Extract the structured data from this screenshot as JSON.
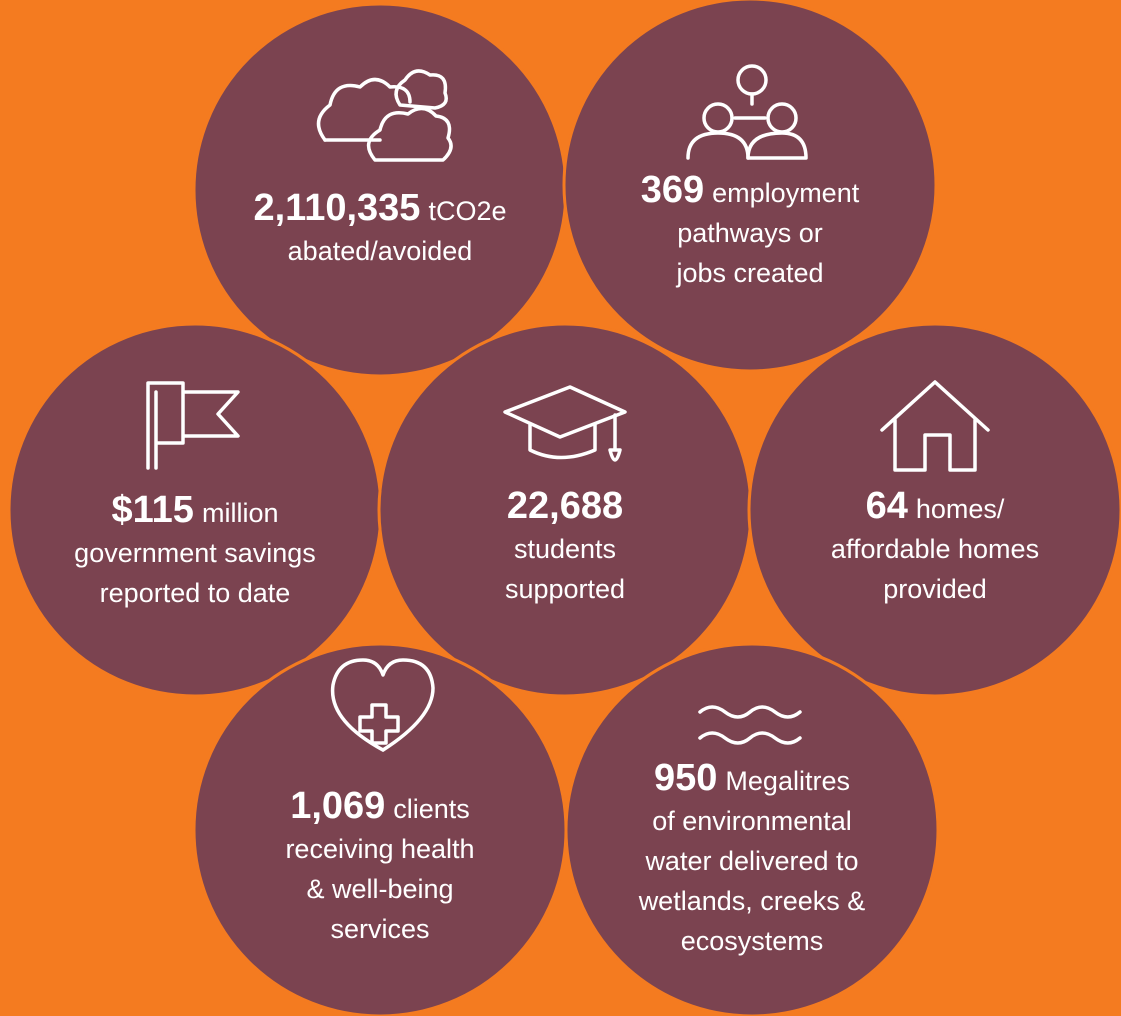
{
  "items": [
    {
      "figure": "2,110,335",
      "suffix": "tCO2e",
      "lines": [
        "abated/avoided"
      ]
    },
    {
      "figure": "369",
      "suffix": "employment",
      "lines": [
        "pathways or",
        "jobs created"
      ]
    },
    {
      "figure": "$115",
      "suffix": "million",
      "lines": [
        "government savings",
        "reported to date"
      ]
    },
    {
      "figure": "22,688",
      "suffix": "",
      "lines": [
        "students",
        "supported"
      ]
    },
    {
      "figure": "64",
      "suffix": "homes/",
      "lines": [
        "affordable homes",
        "provided"
      ]
    },
    {
      "figure": "1,069",
      "suffix": "clients",
      "lines": [
        "receiving health",
        "& well-being",
        "services"
      ]
    },
    {
      "figure": "950",
      "suffix": "Megalitres",
      "lines": [
        "of environmental",
        "water delivered to",
        "wetlands, creeks &",
        "ecosystems"
      ]
    }
  ]
}
